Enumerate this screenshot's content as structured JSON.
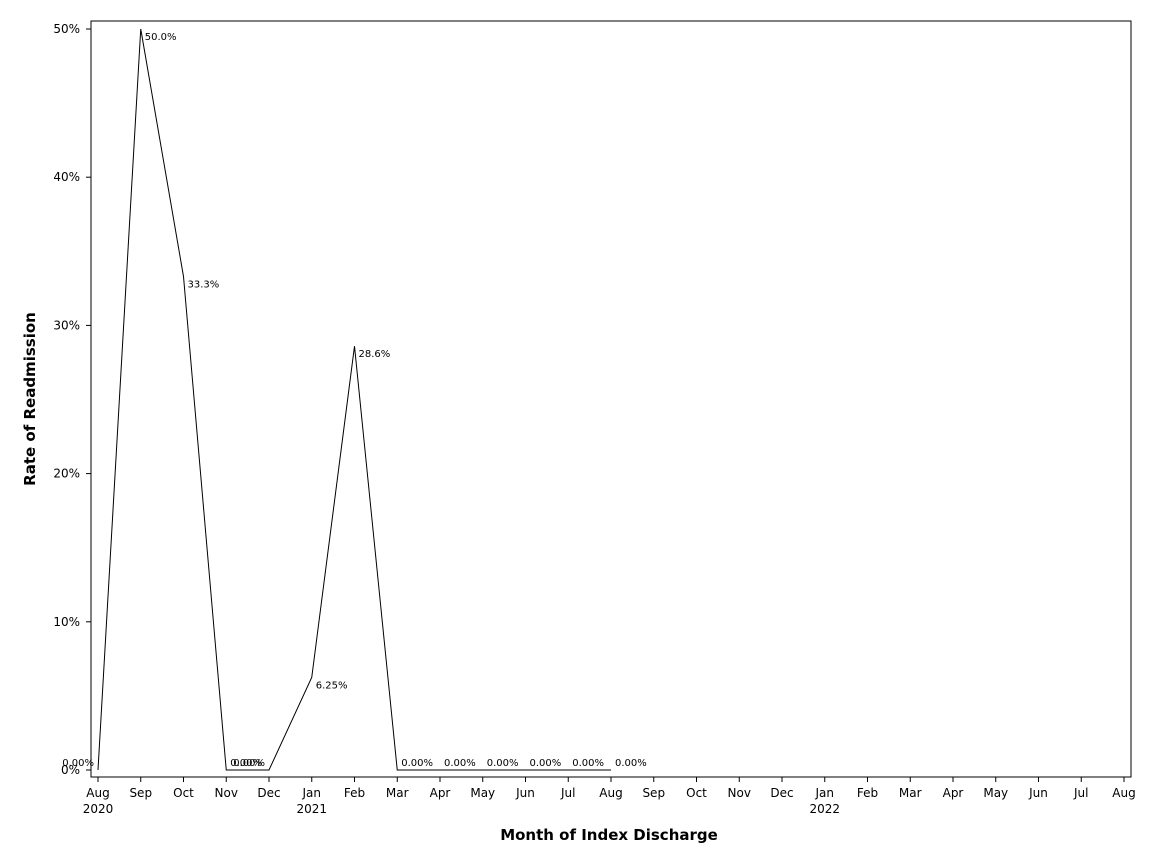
{
  "chart_data": {
    "type": "line",
    "xlabel": "Month of Index Discharge",
    "ylabel": "Rate of Readmission",
    "ylim": [
      0,
      50
    ],
    "y_unit": "%",
    "y_ticks": [
      "0%",
      "10%",
      "20%",
      "30%",
      "40%",
      "50%"
    ],
    "y_tick_values": [
      0,
      10,
      20,
      30,
      40,
      50
    ],
    "x_ticks": [
      {
        "month": "Aug",
        "year": "2020"
      },
      {
        "month": "Sep",
        "year": ""
      },
      {
        "month": "Oct",
        "year": ""
      },
      {
        "month": "Nov",
        "year": ""
      },
      {
        "month": "Dec",
        "year": ""
      },
      {
        "month": "Jan",
        "year": "2021"
      },
      {
        "month": "Feb",
        "year": ""
      },
      {
        "month": "Mar",
        "year": ""
      },
      {
        "month": "Apr",
        "year": ""
      },
      {
        "month": "May",
        "year": ""
      },
      {
        "month": "Jun",
        "year": ""
      },
      {
        "month": "Jul",
        "year": ""
      },
      {
        "month": "Aug",
        "year": ""
      },
      {
        "month": "Sep",
        "year": ""
      },
      {
        "month": "Oct",
        "year": ""
      },
      {
        "month": "Nov",
        "year": ""
      },
      {
        "month": "Dec",
        "year": ""
      },
      {
        "month": "Jan",
        "year": "2022"
      },
      {
        "month": "Feb",
        "year": ""
      },
      {
        "month": "Mar",
        "year": ""
      },
      {
        "month": "Apr",
        "year": ""
      },
      {
        "month": "May",
        "year": ""
      },
      {
        "month": "Jun",
        "year": ""
      },
      {
        "month": "Jul",
        "year": ""
      },
      {
        "month": "Aug",
        "year": ""
      }
    ],
    "series": [
      {
        "points": [
          {
            "x": "2020-08",
            "y": 0,
            "label": "0.00%"
          },
          {
            "x": "2020-09",
            "y": 50.0,
            "label": "50.0%"
          },
          {
            "x": "2020-10",
            "y": 33.3,
            "label": "33.3%"
          },
          {
            "x": "2020-11",
            "y": 0,
            "label": "0.00%"
          },
          {
            "x": "2020-12",
            "y": 0,
            "label": "0.00%"
          },
          {
            "x": "2021-01",
            "y": 6.25,
            "label": "6.25%"
          },
          {
            "x": "2021-02",
            "y": 28.6,
            "label": "28.6%"
          },
          {
            "x": "2021-03",
            "y": 0,
            "label": "0.00%"
          },
          {
            "x": "2021-04",
            "y": 0,
            "label": "0.00%"
          },
          {
            "x": "2021-05",
            "y": 0,
            "label": "0.00%"
          },
          {
            "x": "2021-06",
            "y": 0,
            "label": "0.00%"
          },
          {
            "x": "2021-07",
            "y": 0,
            "label": "0.00%"
          },
          {
            "x": "2021-08",
            "y": 0,
            "label": "0.00%"
          }
        ]
      }
    ],
    "grid": false,
    "legend": "none"
  }
}
